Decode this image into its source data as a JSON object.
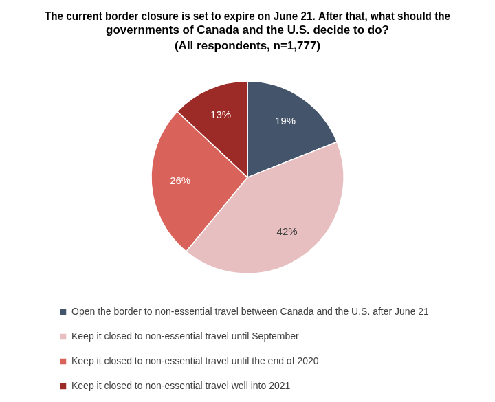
{
  "chart_data": {
    "type": "pie",
    "title": "The current border closure is set to expire on June 21. After that, what should the governments of Canada and the U.S. decide to do?",
    "subtitle": "(All respondents, n=1,777)",
    "categories": [
      "Open the border to non-essential travel between Canada and the U.S. after June 21",
      "Keep it closed to non-essential travel until September",
      "Keep it closed to non-essential travel until the end of 2020",
      "Keep it closed to non-essential travel well into 2021"
    ],
    "values": [
      19,
      42,
      26,
      13
    ],
    "value_labels": [
      "19%",
      "42%",
      "26%",
      "13%"
    ],
    "colors": [
      "#44546a",
      "#e8bfc0",
      "#d9625a",
      "#9c2a26"
    ],
    "legend": "bottom",
    "data_labels": true
  }
}
